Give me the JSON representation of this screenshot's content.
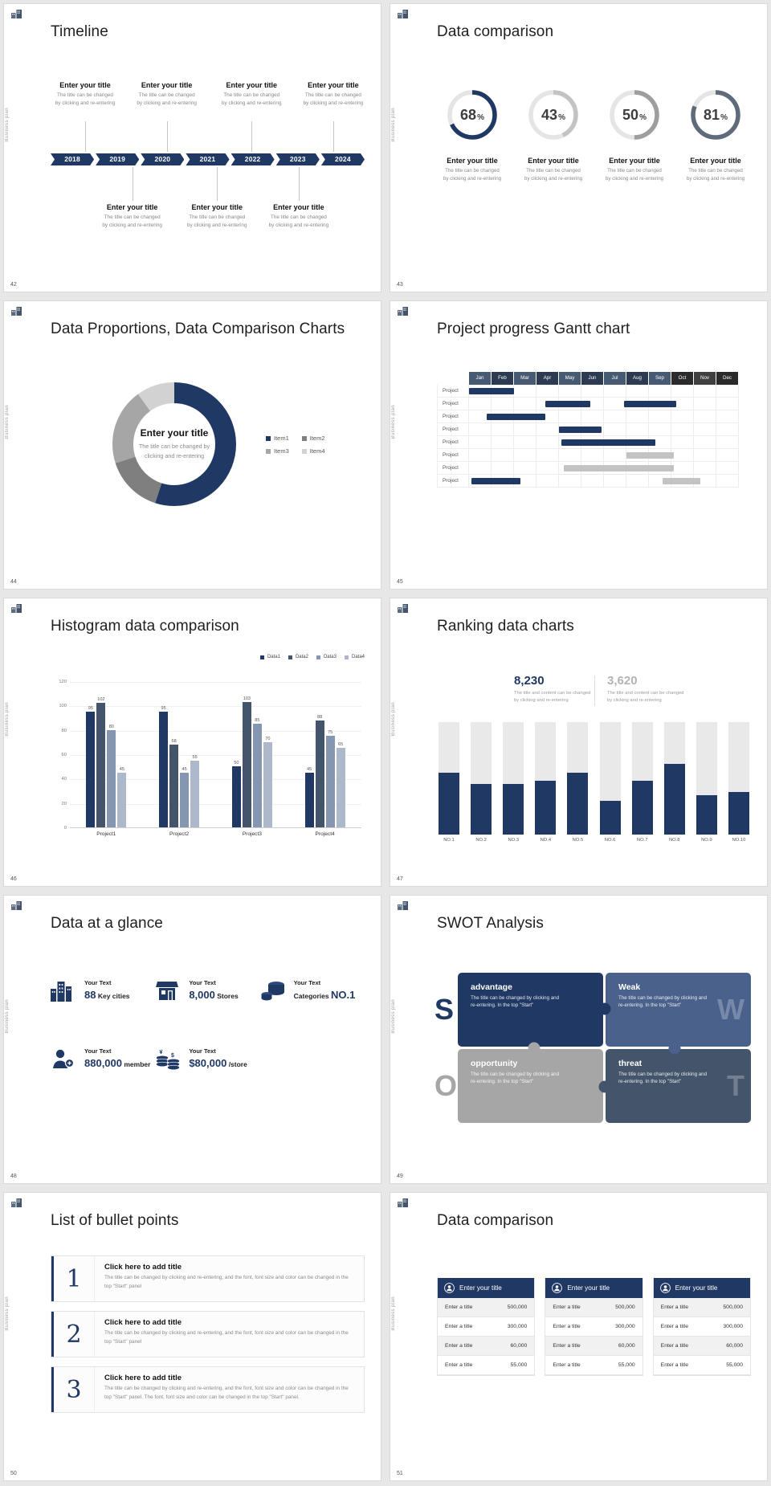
{
  "page": {
    "background": "#e7e7e7"
  },
  "common": {
    "vertical_label": "Business plan",
    "accent_navy": "#203864",
    "accent_slate": "#44546a"
  },
  "slides": {
    "timeline": {
      "number": "42",
      "title": "Timeline",
      "years": [
        "2018",
        "2019",
        "2020",
        "2021",
        "2022",
        "2023",
        "2024"
      ],
      "entry_title": "Enter your title",
      "entry_line1": "The title can be changed",
      "entry_line2": "by clicking and re-entering",
      "top_positions": [
        11,
        37,
        64,
        90
      ],
      "bottom_positions": [
        26,
        53,
        79
      ]
    },
    "rings": {
      "number": "43",
      "title": "Data comparison",
      "entry_title": "Enter your title",
      "entry_line1": "The title can be changed",
      "entry_line2": "by clicking and re-entering",
      "chart_data": {
        "type": "donut-gauges",
        "values": [
          68,
          43,
          50,
          81
        ],
        "unit": "%",
        "colors": [
          "#203864",
          "#c3c3c3",
          "#9e9e9e",
          "#5f6b7a"
        ]
      }
    },
    "donut": {
      "number": "44",
      "title": "Data Proportions, Data Comparison Charts",
      "center_title": "Enter your title",
      "center_line1": "The title can be changed by",
      "center_line2": "clicking and re-entering",
      "chart_data": {
        "type": "pie",
        "labels": [
          "Item1",
          "Item2",
          "Item3",
          "Item4"
        ],
        "values": [
          55,
          15,
          20,
          10
        ],
        "colors": [
          "#203864",
          "#7f7f7f",
          "#a6a6a6",
          "#d2d2d2"
        ]
      }
    },
    "gantt": {
      "number": "45",
      "title": "Project progress Gantt chart",
      "row_label": "Project",
      "rows": 8,
      "chart_data": {
        "type": "gantt",
        "months": [
          "Jan",
          "Feb",
          "Mar",
          "Apr",
          "May",
          "Jun",
          "Jul",
          "Aug",
          "Sep",
          "Oct",
          "Nov",
          "Dec"
        ],
        "header_colors": [
          "#475a74",
          "#2c3a52",
          "#475a74",
          "#2c3a52",
          "#475a74",
          "#2c3a52",
          "#475a74",
          "#2c3a52",
          "#475a74",
          "#2b2b2b",
          "#404040",
          "#2b2b2b"
        ],
        "bars": [
          {
            "row": 0,
            "start": 0,
            "len": 2,
            "color": "#203864"
          },
          {
            "row": 1,
            "start": 3.4,
            "len": 2,
            "color": "#203864"
          },
          {
            "row": 1,
            "start": 6.9,
            "len": 2.3,
            "color": "#203864"
          },
          {
            "row": 2,
            "start": 0.8,
            "len": 2.6,
            "color": "#203864"
          },
          {
            "row": 3,
            "start": 4,
            "len": 1.9,
            "color": "#203864"
          },
          {
            "row": 4,
            "start": 4.1,
            "len": 4.2,
            "color": "#203864"
          },
          {
            "row": 5,
            "start": 7,
            "len": 2.1,
            "color": "#c3c3c3"
          },
          {
            "row": 6,
            "start": 4.2,
            "len": 4.9,
            "color": "#c3c3c3"
          },
          {
            "row": 7,
            "start": 0.1,
            "len": 2.2,
            "color": "#203864"
          },
          {
            "row": 7,
            "start": 8.6,
            "len": 1.7,
            "color": "#c3c3c3"
          }
        ]
      }
    },
    "histogram": {
      "number": "46",
      "title": "Histogram data comparison",
      "chart_data": {
        "type": "bar",
        "categories": [
          "Project1",
          "Project2",
          "Project3",
          "Project4"
        ],
        "series": [
          {
            "name": "Data1",
            "color": "#1f3864",
            "values": [
              95,
              95,
              50,
              45
            ]
          },
          {
            "name": "Data2",
            "color": "#44546a",
            "values": [
              102,
              68,
              103,
              88
            ]
          },
          {
            "name": "Data3",
            "color": "#8496b0",
            "values": [
              80,
              45,
              85,
              75
            ]
          },
          {
            "name": "Data4",
            "color": "#adb9ca",
            "values": [
              45,
              55,
              70,
              65
            ]
          }
        ],
        "ylim": [
          0,
          120
        ],
        "ytick_step": 20
      }
    },
    "ranking": {
      "number": "47",
      "title": "Ranking data charts",
      "stat_primary": "8,230",
      "stat_secondary": "3,620",
      "stat_caption1": "The title and content can be changed",
      "stat_caption2": "by clicking and re-entering",
      "chart_data": {
        "type": "bar",
        "categories": [
          "NO.1",
          "NO.2",
          "NO.3",
          "NO.4",
          "NO.5",
          "NO.6",
          "NO.7",
          "NO.8",
          "NO.9",
          "NO.10"
        ],
        "values": [
          55,
          45,
          45,
          48,
          55,
          30,
          48,
          63,
          35,
          38
        ],
        "max": 100,
        "fill_color": "#203864",
        "track_color": "#e9e9e9"
      }
    },
    "glance": {
      "number": "48",
      "title": "Data at a glance",
      "items": [
        {
          "icon": "city-icon",
          "label": "Your Text",
          "value": "88",
          "suffix": "Key cities"
        },
        {
          "icon": "store-icon",
          "label": "Your Text",
          "value": "8,000",
          "suffix": "Stores"
        },
        {
          "icon": "category-icon",
          "label": "Your Text",
          "prefix": "Categories",
          "value": "NO.1",
          "suffix": ""
        },
        {
          "icon": "member-icon",
          "label": "Your Text",
          "value": "880,000",
          "suffix": "member"
        },
        {
          "icon": "coins-icon",
          "label": "Your Text",
          "value": "$80,000",
          "suffix": "/store"
        }
      ]
    },
    "swot": {
      "number": "49",
      "title": "SWOT Analysis",
      "quadrants": [
        {
          "letter": "S",
          "heading": "advantage",
          "body": "The title can be changed by clicking and re-entering. In the top \"Start\"",
          "color": "#203864"
        },
        {
          "letter": "W",
          "heading": "Weak",
          "body": "The title can be changed by clicking and re-entering. In the top \"Start\"",
          "color": "#4a618c"
        },
        {
          "letter": "O",
          "heading": "opportunity",
          "body": "The title can be changed by clicking and re-entering. In the top \"Start\"",
          "color": "#a6a6a6"
        },
        {
          "letter": "T",
          "heading": "threat",
          "body": "The title can be changed by clicking and re-entering. In the top \"Start\"",
          "color": "#44546a"
        }
      ]
    },
    "bullets": {
      "number": "50",
      "title": "List of bullet points",
      "items": [
        {
          "num": "1",
          "heading": "Click here to add title",
          "body": "The title can be changed by clicking and re-entering, and the font, font size and color can be changed in the top \"Start\" panel"
        },
        {
          "num": "2",
          "heading": "Click here to add title",
          "body": "The title can be changed by clicking and re-entering, and the font, font size and color can be changed in the top \"Start\" panel"
        },
        {
          "num": "3",
          "heading": "Click here to add title",
          "body": "The title can be changed by clicking and re-entering, and the font, font size and color can be changed in the top \"Start\" panel. The font, font size and color can be changed in the top \"Start\" panel."
        }
      ]
    },
    "tables": {
      "number": "51",
      "title": "Data comparison",
      "table_count": 3,
      "header_title": "Enter your title",
      "row_label": "Enter a title",
      "row_values": [
        "500,000",
        "300,000",
        "60,000",
        "55,000"
      ]
    }
  }
}
